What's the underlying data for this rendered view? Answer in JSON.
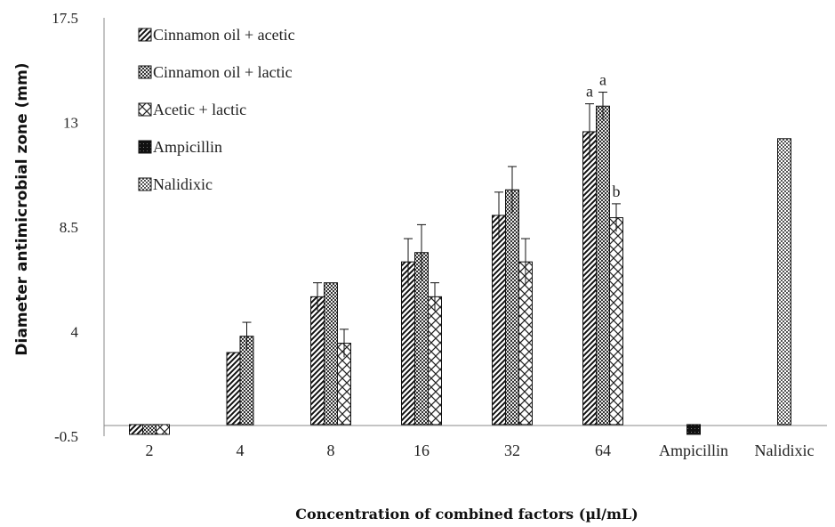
{
  "chart_data": {
    "type": "bar",
    "xlabel": "Concentration of combined factors (µl/mL)",
    "ylabel": "Diameter  antimicrobial  zone (mm)",
    "ylim": [
      -0.5,
      17.5
    ],
    "yticks": [
      "-0.5",
      "4",
      "8.5",
      "13",
      "17.5"
    ],
    "ytick_values": [
      -0.5,
      4,
      8.5,
      13,
      17.5
    ],
    "categories": [
      "2",
      "4",
      "8",
      "16",
      "32",
      "64",
      "Ampicillin",
      "Nalidixic"
    ],
    "legend_position": "top-left",
    "grid": false,
    "series": [
      {
        "name": "Cinnamon oil + acetic",
        "pattern": "diagonal",
        "values": [
          0,
          3.1,
          5.5,
          7.0,
          9.0,
          12.6,
          null,
          null
        ],
        "errors": [
          0,
          0,
          0.6,
          1.0,
          1.0,
          1.2,
          null,
          null
        ]
      },
      {
        "name": "Cinnamon oil + lactic",
        "pattern": "crosshatch",
        "values": [
          0,
          3.8,
          6.1,
          7.4,
          10.1,
          13.7,
          null,
          null
        ],
        "errors": [
          0,
          0.6,
          0,
          1.2,
          1.0,
          0.6,
          null,
          null
        ]
      },
      {
        "name": "Acetic + lactic",
        "pattern": "diamond",
        "values": [
          0,
          null,
          3.5,
          5.5,
          7.0,
          8.9,
          null,
          null
        ],
        "errors": [
          0,
          null,
          0.6,
          0.6,
          1.0,
          0.6,
          null,
          null
        ]
      },
      {
        "name": "Ampicillin",
        "pattern": "solid",
        "values": [
          null,
          null,
          null,
          null,
          null,
          null,
          0,
          null
        ],
        "errors": [
          null,
          null,
          null,
          null,
          null,
          null,
          0,
          null
        ]
      },
      {
        "name": "Nalidixic",
        "pattern": "checker",
        "values": [
          null,
          null,
          null,
          null,
          null,
          null,
          null,
          12.3
        ],
        "errors": [
          null,
          null,
          null,
          null,
          null,
          null,
          null,
          0
        ]
      }
    ],
    "annotations": [
      {
        "text": "a",
        "category": "64",
        "series": "Cinnamon oil + acetic"
      },
      {
        "text": "a",
        "category": "64",
        "series": "Cinnamon oil + lactic"
      },
      {
        "text": "b",
        "category": "64",
        "series": "Acetic + lactic"
      }
    ]
  }
}
